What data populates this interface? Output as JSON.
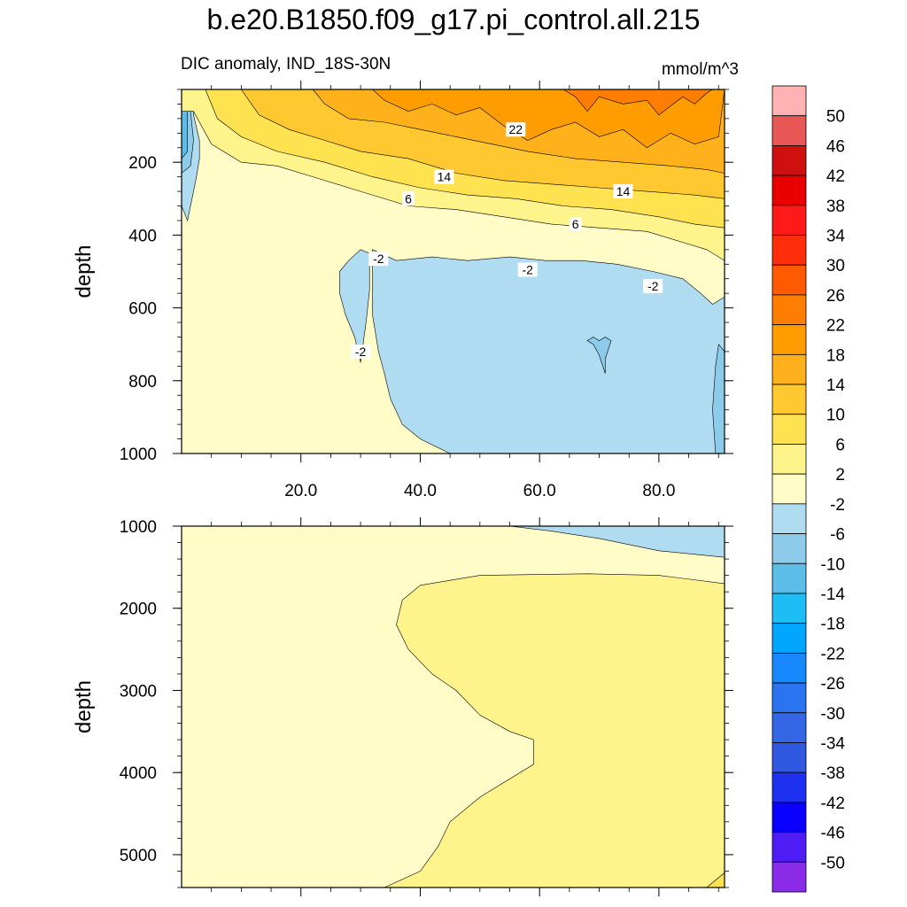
{
  "title": "b.e20.B1850.f09_g17.pi_control.all.215",
  "subtitle_left": "DIC anomaly, IND_18S-30N",
  "subtitle_right": "mmol/m^3",
  "chart_data": [
    {
      "type": "heatmap",
      "panel": "upper",
      "variable": "DIC anomaly",
      "region": "IND_18S-30N",
      "units": "mmol/m^3",
      "xlabel": "",
      "ylabel": "depth",
      "xlim": [
        0,
        91
      ],
      "ylim": [
        1000,
        0
      ],
      "x_ticks": [
        20.0,
        40.0,
        60.0,
        80.0
      ],
      "x_tick_labels": [
        "20.0",
        "40.0",
        "60.0",
        "80.0"
      ],
      "y_ticks": [
        200,
        400,
        600,
        800,
        1000
      ],
      "y_tick_labels": [
        "200",
        "400",
        "600",
        "800",
        "1000"
      ],
      "contour_labels": [
        {
          "text": "22",
          "x": 56,
          "y": 110
        },
        {
          "text": "14",
          "x": 44,
          "y": 240
        },
        {
          "text": "14",
          "x": 74,
          "y": 280
        },
        {
          "text": "6",
          "x": 38,
          "y": 300
        },
        {
          "text": "6",
          "x": 66,
          "y": 370
        },
        {
          "text": "-2",
          "x": 33,
          "y": 465
        },
        {
          "text": "-2",
          "x": 58,
          "y": 495
        },
        {
          "text": "-2",
          "x": 79,
          "y": 540
        },
        {
          "text": "-2",
          "x": 30,
          "y": 720
        }
      ],
      "regions": [
        {
          "level": 2,
          "color": "#fffcc8",
          "polygon": [
            [
              0,
              0
            ],
            [
              91,
              0
            ],
            [
              91,
              1000
            ],
            [
              0,
              1000
            ]
          ]
        },
        {
          "level": -2,
          "color": "#b0dcf2",
          "polygon": [
            [
              32,
              440
            ],
            [
              36,
              470
            ],
            [
              42,
              460
            ],
            [
              48,
              470
            ],
            [
              55,
              460
            ],
            [
              61,
              470
            ],
            [
              67,
              470
            ],
            [
              73,
              480
            ],
            [
              79,
              500
            ],
            [
              84,
              520
            ],
            [
              87,
              560
            ],
            [
              89,
              590
            ],
            [
              91,
              570
            ],
            [
              91,
              1000
            ],
            [
              45,
              1000
            ],
            [
              40,
              960
            ],
            [
              37,
              920
            ],
            [
              35,
              850
            ],
            [
              34,
              780
            ],
            [
              33,
              720
            ],
            [
              32,
              620
            ],
            [
              32,
              560
            ]
          ]
        },
        {
          "level": -2,
          "color": "#b0dcf2",
          "polygon": [
            [
              28,
              470
            ],
            [
              30,
              440
            ],
            [
              31.5,
              450
            ],
            [
              31.5,
              550
            ],
            [
              31,
              630
            ],
            [
              30,
              750
            ],
            [
              29,
              680
            ],
            [
              27.5,
              620
            ],
            [
              26.5,
              560
            ],
            [
              26.5,
              500
            ]
          ]
        },
        {
          "level": -6,
          "color": "#8ecbea",
          "polygon": [
            [
              69,
              680
            ],
            [
              70,
              690
            ],
            [
              71,
              680
            ],
            [
              72,
              690
            ],
            [
              71,
              740
            ],
            [
              71,
              780
            ],
            [
              70,
              730
            ],
            [
              69,
              700
            ],
            [
              68,
              690
            ]
          ]
        },
        {
          "level": -6,
          "color": "#8ecbea",
          "polygon": [
            [
              90,
              700
            ],
            [
              91,
              720
            ],
            [
              91,
              1000
            ],
            [
              89.5,
              1000
            ],
            [
              89,
              880
            ],
            [
              89.5,
              760
            ]
          ]
        },
        {
          "level": -2,
          "color": "#b0dcf2",
          "polygon": [
            [
              0,
              0
            ],
            [
              2,
              0
            ],
            [
              2,
              70
            ],
            [
              3,
              140
            ],
            [
              3,
              190
            ],
            [
              2.5,
              240
            ],
            [
              2,
              280
            ],
            [
              1,
              360
            ],
            [
              0,
              320
            ]
          ]
        },
        {
          "level": -6,
          "color": "#8ecbea",
          "polygon": [
            [
              0,
              0
            ],
            [
              1.8,
              0
            ],
            [
              1.5,
              60
            ],
            [
              2,
              140
            ],
            [
              1.5,
              210
            ],
            [
              0,
              230
            ]
          ]
        },
        {
          "level": -10,
          "color": "#5bbde8",
          "polygon": [
            [
              0,
              0
            ],
            [
              1,
              0
            ],
            [
              1,
              80
            ],
            [
              1,
              170
            ],
            [
              0,
              190
            ]
          ]
        },
        {
          "level": 6,
          "color": "#fff38c",
          "polygon": [
            [
              0,
              60
            ],
            [
              2,
              60
            ],
            [
              5,
              150
            ],
            [
              10,
              200
            ],
            [
              16,
              210
            ],
            [
              22,
              240
            ],
            [
              30,
              280
            ],
            [
              38,
              320
            ],
            [
              46,
              330
            ],
            [
              54,
              350
            ],
            [
              62,
              370
            ],
            [
              70,
              380
            ],
            [
              78,
              390
            ],
            [
              84,
              420
            ],
            [
              88,
              440
            ],
            [
              91,
              470
            ],
            [
              91,
              0
            ],
            [
              0,
              0
            ]
          ]
        },
        {
          "level": 10,
          "color": "#ffe24f",
          "polygon": [
            [
              4,
              0
            ],
            [
              6,
              80
            ],
            [
              10,
              130
            ],
            [
              16,
              170
            ],
            [
              24,
              200
            ],
            [
              32,
              240
            ],
            [
              40,
              270
            ],
            [
              48,
              290
            ],
            [
              56,
              300
            ],
            [
              64,
              320
            ],
            [
              72,
              330
            ],
            [
              80,
              350
            ],
            [
              86,
              370
            ],
            [
              91,
              380
            ],
            [
              91,
              0
            ]
          ]
        },
        {
          "level": 14,
          "color": "#ffc830",
          "polygon": [
            [
              10,
              0
            ],
            [
              13,
              70
            ],
            [
              18,
              110
            ],
            [
              24,
              140
            ],
            [
              30,
              170
            ],
            [
              38,
              190
            ],
            [
              46,
              230
            ],
            [
              54,
              250
            ],
            [
              62,
              260
            ],
            [
              70,
              270
            ],
            [
              78,
              280
            ],
            [
              86,
              290
            ],
            [
              91,
              300
            ],
            [
              91,
              0
            ]
          ]
        },
        {
          "level": 18,
          "color": "#ffb11c",
          "polygon": [
            [
              22,
              0
            ],
            [
              24,
              40
            ],
            [
              28,
              80
            ],
            [
              34,
              90
            ],
            [
              40,
              110
            ],
            [
              46,
              130
            ],
            [
              52,
              150
            ],
            [
              58,
              170
            ],
            [
              66,
              190
            ],
            [
              74,
              200
            ],
            [
              82,
              210
            ],
            [
              88,
              220
            ],
            [
              91,
              230
            ],
            [
              91,
              0
            ]
          ]
        },
        {
          "level": 22,
          "color": "#ff9d00",
          "polygon": [
            [
              32,
              0
            ],
            [
              34,
              30
            ],
            [
              38,
              60
            ],
            [
              42,
              40
            ],
            [
              46,
              70
            ],
            [
              50,
              50
            ],
            [
              54,
              100
            ],
            [
              58,
              140
            ],
            [
              62,
              110
            ],
            [
              66,
              90
            ],
            [
              70,
              130
            ],
            [
              74,
              110
            ],
            [
              78,
              160
            ],
            [
              82,
              120
            ],
            [
              86,
              150
            ],
            [
              90,
              130
            ],
            [
              91,
              0
            ]
          ]
        },
        {
          "level": 26,
          "color": "#ff7d00",
          "polygon": [
            [
              64,
              0
            ],
            [
              66,
              20
            ],
            [
              68,
              60
            ],
            [
              70,
              20
            ],
            [
              74,
              40
            ],
            [
              78,
              30
            ],
            [
              80,
              70
            ],
            [
              84,
              20
            ],
            [
              86,
              40
            ],
            [
              88,
              10
            ],
            [
              89,
              0
            ]
          ]
        }
      ]
    },
    {
      "type": "heatmap",
      "panel": "lower",
      "variable": "DIC anomaly",
      "units": "mmol/m^3",
      "xlabel": "",
      "ylabel": "depth",
      "xlim": [
        0,
        91
      ],
      "ylim": [
        5400,
        1000
      ],
      "y_ticks": [
        1000,
        2000,
        3000,
        4000,
        5000
      ],
      "y_tick_labels": [
        "1000",
        "2000",
        "3000",
        "4000",
        "5000"
      ],
      "regions": [
        {
          "level": 2,
          "color": "#fffcc8",
          "polygon": [
            [
              0,
              1000
            ],
            [
              91,
              1000
            ],
            [
              91,
              5400
            ],
            [
              0,
              5400
            ]
          ]
        },
        {
          "level": -2,
          "color": "#b0dcf2",
          "polygon": [
            [
              55,
              1000
            ],
            [
              91,
              1000
            ],
            [
              91,
              1380
            ],
            [
              80,
              1300
            ],
            [
              70,
              1150
            ],
            [
              62,
              1060
            ]
          ]
        },
        {
          "level": 6,
          "color": "#fff38c",
          "polygon": [
            [
              91,
              1700
            ],
            [
              80,
              1600
            ],
            [
              68,
              1580
            ],
            [
              50,
              1600
            ],
            [
              40,
              1720
            ],
            [
              37,
              1900
            ],
            [
              36,
              2200
            ],
            [
              38,
              2500
            ],
            [
              42,
              2800
            ],
            [
              46,
              3000
            ],
            [
              50,
              3300
            ],
            [
              55,
              3500
            ],
            [
              59,
              3600
            ],
            [
              59,
              3900
            ],
            [
              50,
              4300
            ],
            [
              45,
              4600
            ],
            [
              43,
              4900
            ],
            [
              40,
              5200
            ],
            [
              34,
              5400
            ],
            [
              91,
              5400
            ]
          ]
        },
        {
          "level": 10,
          "color": "#ffe24f",
          "polygon": [
            [
              88,
              5400
            ],
            [
              91,
              5220
            ],
            [
              91,
              5400
            ]
          ]
        }
      ]
    },
    {
      "type": "colorbar",
      "labels": [
        "50",
        "46",
        "42",
        "38",
        "34",
        "30",
        "26",
        "22",
        "18",
        "14",
        "10",
        "6",
        "2",
        "-2",
        "-6",
        "-10",
        "-14",
        "-18",
        "-22",
        "-26",
        "-30",
        "-34",
        "-38",
        "-42",
        "-46",
        "-50"
      ],
      "colors": [
        "#ffb2b2",
        "#e85656",
        "#cf1010",
        "#e80000",
        "#ff1a1a",
        "#ff2e0a",
        "#ff5a00",
        "#ff7d00",
        "#ff9d00",
        "#ffb11c",
        "#ffc830",
        "#ffe24f",
        "#fff38c",
        "#fffcc8",
        "#b0dcf2",
        "#8ecbea",
        "#5bbde8",
        "#1fbdf5",
        "#00a6ff",
        "#1888ff",
        "#2a74f2",
        "#3466e6",
        "#3158e0",
        "#1e30f0",
        "#0a00ff",
        "#4e1cf5",
        "#8a2be8"
      ]
    }
  ]
}
